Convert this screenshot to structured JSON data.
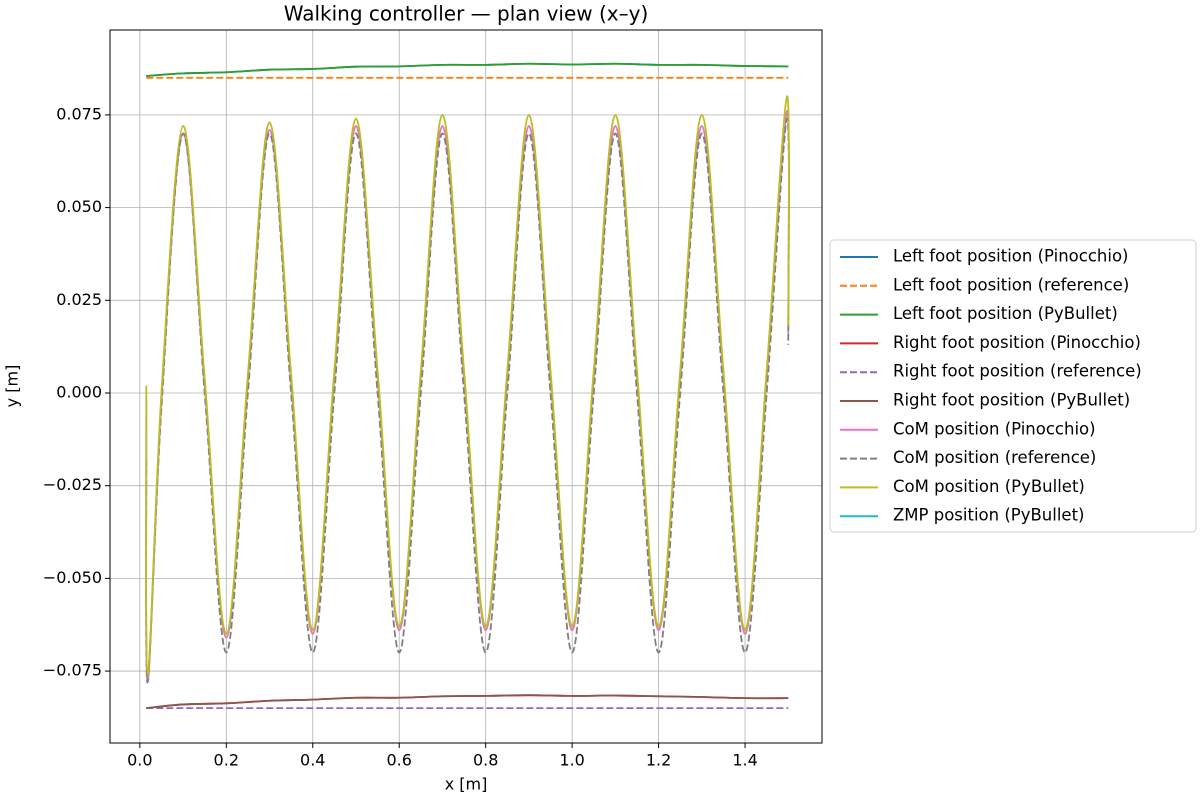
{
  "chart_data": {
    "type": "line",
    "title": "Walking controller — plan view (x–y)",
    "x_label": "x [m]",
    "y_label": "y [m]",
    "xlim": [
      -0.069,
      1.578
    ],
    "ylim": [
      -0.0944,
      0.0979
    ],
    "xticks": [
      {
        "value": 0,
        "label": "0.0"
      },
      0.2,
      0.4,
      0.6,
      0.8,
      {
        "value": 1,
        "label": "1.0"
      },
      1.2,
      1.4
    ],
    "yticks": [
      {
        "value": -0.075,
        "label": "−0.075"
      },
      {
        "value": -0.05,
        "label": "−0.050"
      },
      {
        "value": -0.025,
        "label": "−0.025"
      },
      {
        "value": 0,
        "label": "0.000"
      },
      0.025,
      {
        "value": 0.05,
        "label": "0.050"
      },
      0.075
    ],
    "grid": true,
    "legend": "outside right",
    "series": [
      {
        "name": "Left foot position (Pinocchio)",
        "color": "#1f77b4",
        "dash": false,
        "x": [
          0.015,
          0.1,
          0.2,
          0.3,
          0.4,
          0.5,
          0.6,
          0.7,
          0.8,
          0.9,
          1.0,
          1.1,
          1.2,
          1.3,
          1.4,
          1.5
        ],
        "values": [
          0.0855,
          0.0862,
          0.0865,
          0.0872,
          0.0874,
          0.088,
          0.0881,
          0.0885,
          0.0885,
          0.0888,
          0.0886,
          0.0888,
          0.0885,
          0.0885,
          0.0882,
          0.0881
        ]
      },
      {
        "name": "Left foot position (reference)",
        "color": "#ff7f0e",
        "dash": true,
        "x": [
          0.015,
          1.5
        ],
        "values": [
          0.085,
          0.085
        ]
      },
      {
        "name": "Left foot position (PyBullet)",
        "color": "#2ca02c",
        "dash": false,
        "x": [
          0.015,
          0.1,
          0.2,
          0.3,
          0.4,
          0.5,
          0.6,
          0.7,
          0.8,
          0.9,
          1.0,
          1.1,
          1.2,
          1.3,
          1.4,
          1.5
        ],
        "values": [
          0.0855,
          0.0862,
          0.0865,
          0.0872,
          0.0874,
          0.088,
          0.0881,
          0.0885,
          0.0885,
          0.0888,
          0.0886,
          0.0888,
          0.0885,
          0.0885,
          0.0882,
          0.0881
        ]
      },
      {
        "name": "Right foot position (Pinocchio)",
        "color": "#d62728",
        "dash": false,
        "x": [
          0.015,
          0.1,
          0.2,
          0.3,
          0.4,
          0.5,
          0.6,
          0.7,
          0.8,
          0.9,
          1.0,
          1.1,
          1.2,
          1.3,
          1.4,
          1.5
        ],
        "values": [
          -0.085,
          -0.084,
          -0.0837,
          -0.083,
          -0.0827,
          -0.0822,
          -0.0822,
          -0.0818,
          -0.0817,
          -0.0815,
          -0.0817,
          -0.0816,
          -0.0818,
          -0.082,
          -0.0823,
          -0.0823
        ]
      },
      {
        "name": "Right foot position (reference)",
        "color": "#9467bd",
        "dash": true,
        "x": [
          0.015,
          1.5
        ],
        "values": [
          -0.085,
          -0.085
        ]
      },
      {
        "name": "Right foot position (PyBullet)",
        "color": "#8c564b",
        "dash": false,
        "x": [
          0.015,
          0.1,
          0.2,
          0.3,
          0.4,
          0.5,
          0.6,
          0.7,
          0.8,
          0.9,
          1.0,
          1.1,
          1.2,
          1.3,
          1.4,
          1.5
        ],
        "values": [
          -0.085,
          -0.084,
          -0.0837,
          -0.083,
          -0.0827,
          -0.0822,
          -0.0822,
          -0.0818,
          -0.0817,
          -0.0815,
          -0.0817,
          -0.0816,
          -0.0818,
          -0.082,
          -0.0823,
          -0.0823
        ]
      },
      {
        "name": "CoM position (Pinocchio)",
        "color": "#e377c2",
        "dash": false,
        "x": [
          0.015,
          0.018,
          0.05,
          0.1,
          0.15,
          0.2,
          0.25,
          0.3,
          0.35,
          0.4,
          0.45,
          0.5,
          0.55,
          0.6,
          0.65,
          0.7,
          0.75,
          0.8,
          0.85,
          0.9,
          0.95,
          1.0,
          1.05,
          1.1,
          1.15,
          1.2,
          1.25,
          1.3,
          1.35,
          1.4,
          1.45,
          1.497,
          1.5
        ],
        "values": [
          -0.002,
          -0.078,
          -0.002,
          0.07,
          0.002,
          -0.066,
          0.003,
          0.071,
          0.003,
          -0.065,
          0.004,
          0.072,
          0.004,
          -0.064,
          0.004,
          0.072,
          0.004,
          -0.064,
          0.004,
          0.072,
          0.004,
          -0.064,
          0.004,
          0.072,
          0.004,
          -0.064,
          0.004,
          0.072,
          0.004,
          -0.065,
          0.004,
          0.076,
          0.016
        ]
      },
      {
        "name": "CoM position (reference)",
        "color": "#7f7f7f",
        "dash": true,
        "x": [
          0.015,
          0.018,
          0.05,
          0.1,
          0.15,
          0.2,
          0.25,
          0.3,
          0.35,
          0.4,
          0.45,
          0.5,
          0.55,
          0.6,
          0.65,
          0.7,
          0.75,
          0.8,
          0.85,
          0.9,
          0.95,
          1.0,
          1.05,
          1.1,
          1.15,
          1.2,
          1.25,
          1.3,
          1.35,
          1.4,
          1.45,
          1.497,
          1.5
        ],
        "values": [
          -0.018,
          -0.078,
          -0.004,
          0.07,
          0.0,
          -0.07,
          0.0,
          0.07,
          0.0,
          -0.07,
          0.0,
          0.07,
          0.0,
          -0.07,
          0.0,
          0.07,
          0.0,
          -0.07,
          0.0,
          0.07,
          0.0,
          -0.07,
          0.0,
          0.07,
          0.0,
          -0.07,
          0.0,
          0.07,
          0.0,
          -0.07,
          0.0,
          0.074,
          0.013
        ]
      },
      {
        "name": "CoM position (PyBullet)",
        "color": "#bcbd22",
        "dash": false,
        "x": [
          0.015,
          0.018,
          0.05,
          0.1,
          0.15,
          0.2,
          0.25,
          0.3,
          0.35,
          0.4,
          0.45,
          0.5,
          0.55,
          0.6,
          0.65,
          0.7,
          0.75,
          0.8,
          0.85,
          0.9,
          0.95,
          1.0,
          1.05,
          1.1,
          1.15,
          1.2,
          1.25,
          1.3,
          1.35,
          1.4,
          1.45,
          1.497,
          1.5
        ],
        "values": [
          0.002,
          -0.076,
          0.0,
          0.072,
          0.004,
          -0.065,
          0.005,
          0.073,
          0.005,
          -0.064,
          0.006,
          0.074,
          0.006,
          -0.063,
          0.006,
          0.075,
          0.006,
          -0.063,
          0.006,
          0.075,
          0.006,
          -0.063,
          0.006,
          0.075,
          0.006,
          -0.063,
          0.006,
          0.075,
          0.006,
          -0.064,
          0.006,
          0.08,
          0.018
        ]
      },
      {
        "name": "ZMP position (PyBullet)",
        "color": "#17becf",
        "dash": false,
        "x": [],
        "values": []
      }
    ]
  }
}
